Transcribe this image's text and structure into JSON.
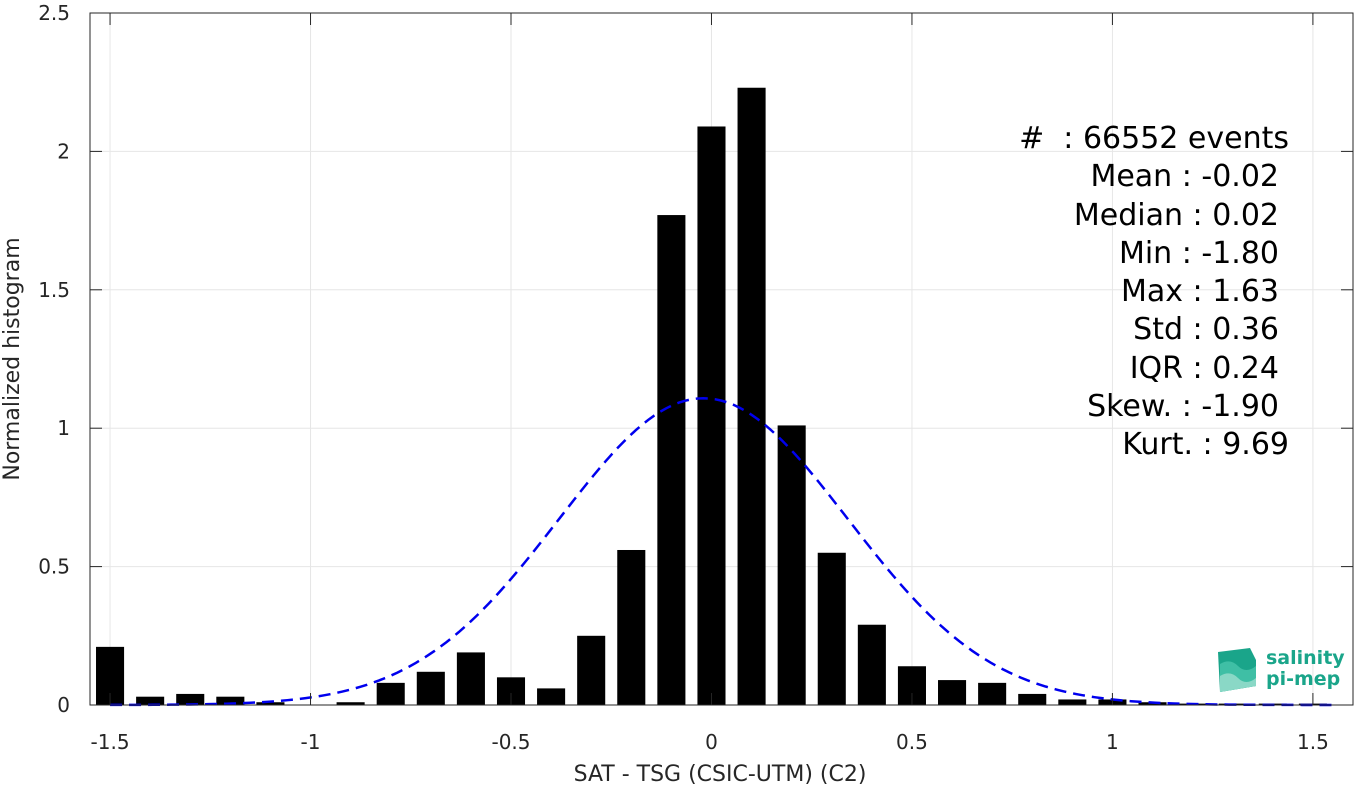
{
  "chart_data": {
    "type": "bar",
    "xlabel": "SAT - TSG (CSIC-UTM) (C2)",
    "ylabel": "Normalized histogram",
    "xlim": [
      -1.55,
      1.6
    ],
    "ylim": [
      0,
      2.5
    ],
    "xticks": [
      -1.5,
      -1,
      -0.5,
      0,
      0.5,
      1,
      1.5
    ],
    "xtick_labels": [
      "-1.5",
      "-1",
      "-0.5",
      "0",
      "0.5",
      "1",
      "1.5"
    ],
    "yticks": [
      0,
      0.5,
      1,
      1.5,
      2,
      2.5
    ],
    "ytick_labels": [
      "0",
      "0.5",
      "1",
      "1.5",
      "2",
      "2.5"
    ],
    "grid": true,
    "bin_width": 0.1,
    "bar_color": "#000000",
    "bars": {
      "x": [
        -1.5,
        -1.4,
        -1.3,
        -1.2,
        -1.1,
        -1.0,
        -0.9,
        -0.8,
        -0.7,
        -0.6,
        -0.5,
        -0.4,
        -0.3,
        -0.2,
        -0.1,
        0.0,
        0.1,
        0.2,
        0.3,
        0.4,
        0.5,
        0.6,
        0.7,
        0.8,
        0.9,
        1.0,
        1.1,
        1.2,
        1.3,
        1.4,
        1.5
      ],
      "values": [
        0.21,
        0.03,
        0.04,
        0.03,
        0.01,
        0.0,
        0.01,
        0.08,
        0.12,
        0.19,
        0.1,
        0.06,
        0.25,
        0.56,
        1.77,
        2.09,
        2.23,
        1.01,
        0.55,
        0.29,
        0.14,
        0.09,
        0.08,
        0.04,
        0.02,
        0.02,
        0.01,
        0.005,
        0.005,
        0.005,
        0.005
      ]
    },
    "fit_curve": {
      "name": "gaussian",
      "mean": -0.02,
      "std": 0.36,
      "x_range": [
        -1.5,
        1.55
      ],
      "color": "#0000ee",
      "style": "dashed"
    }
  },
  "stats": {
    "events": "#  : 66552 events",
    "mean": "Mean : -0.02",
    "median": "Median : 0.02",
    "min": "Min : -1.80",
    "max": "Max : 1.63",
    "std": "Std : 0.36",
    "iqr": "IQR : 0.24",
    "skew": "Skew. : -1.90",
    "kurt": "Kurt. : 9.69"
  },
  "logo": {
    "line1": "salinity",
    "line2": "pi-mep",
    "color": "#1aa58a"
  }
}
